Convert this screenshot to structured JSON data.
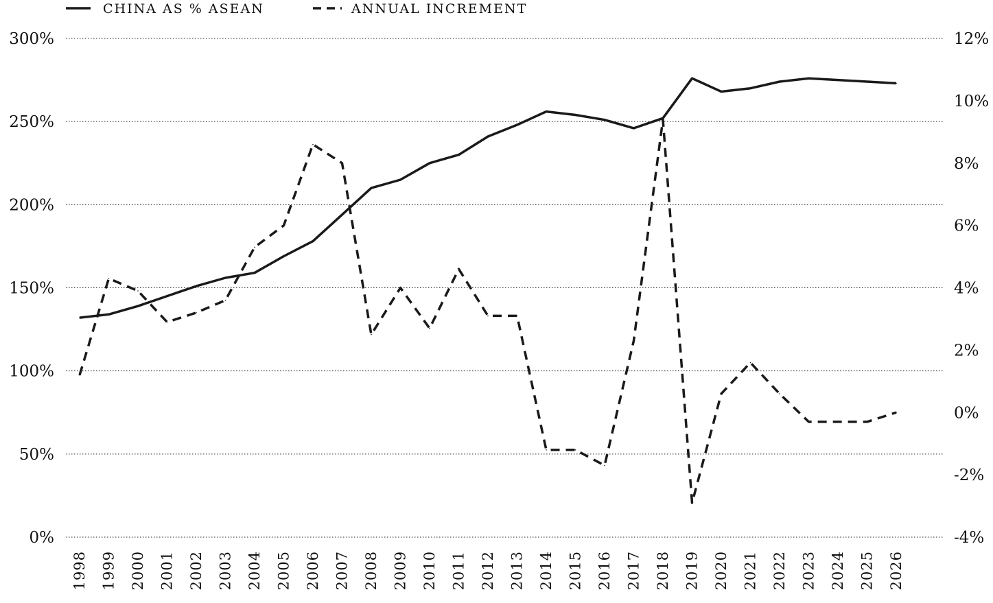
{
  "chart_data": {
    "type": "line",
    "title": "",
    "xlabel": "",
    "ylabel": "",
    "y2label": "",
    "legend_position": "top-left",
    "grid": true,
    "x": [
      "1998",
      "1999",
      "2000",
      "2001",
      "2002",
      "2003",
      "2004",
      "2005",
      "2006",
      "2007",
      "2008",
      "2009",
      "2010",
      "2011",
      "2012",
      "2013",
      "2014",
      "2015",
      "2016",
      "2017",
      "2018",
      "2019",
      "2020",
      "2021",
      "2022",
      "2023",
      "2024",
      "2025",
      "2026"
    ],
    "ylim": [
      0,
      300
    ],
    "y_ticks": [
      0,
      50,
      100,
      150,
      200,
      250,
      300
    ],
    "y_tick_labels": [
      "0%",
      "50%",
      "100%",
      "150%",
      "200%",
      "250%",
      "300%"
    ],
    "y2lim": [
      -4,
      12
    ],
    "y2_ticks": [
      -4,
      -2,
      0,
      2,
      4,
      6,
      8,
      10,
      12
    ],
    "y2_tick_labels": [
      "-4%",
      "-2%",
      "0%",
      "2%",
      "4%",
      "6%",
      "8%",
      "10%",
      "12%"
    ],
    "series": [
      {
        "name": "CHINA AS % ASEAN",
        "axis": "left",
        "style": "solid",
        "color": "#1a1a1a",
        "values": [
          132,
          134,
          139,
          145,
          151,
          156,
          159,
          169,
          178,
          194,
          210,
          215,
          225,
          230,
          241,
          248,
          256,
          254,
          251,
          246,
          252,
          276,
          268,
          270,
          274,
          276,
          275,
          274,
          273
        ]
      },
      {
        "name": "ANNUAL INCREMENT",
        "axis": "right",
        "style": "dashed",
        "color": "#1a1a1a",
        "values": [
          1.2,
          4.3,
          3.9,
          2.9,
          3.2,
          3.6,
          5.3,
          6.0,
          8.6,
          8.0,
          2.5,
          4.0,
          2.7,
          4.6,
          3.1,
          3.1,
          -1.2,
          -1.2,
          -1.7,
          2.3,
          9.4,
          -2.9,
          0.6,
          1.6,
          0.6,
          -0.3,
          -0.3,
          -0.3,
          0.0
        ]
      }
    ]
  }
}
